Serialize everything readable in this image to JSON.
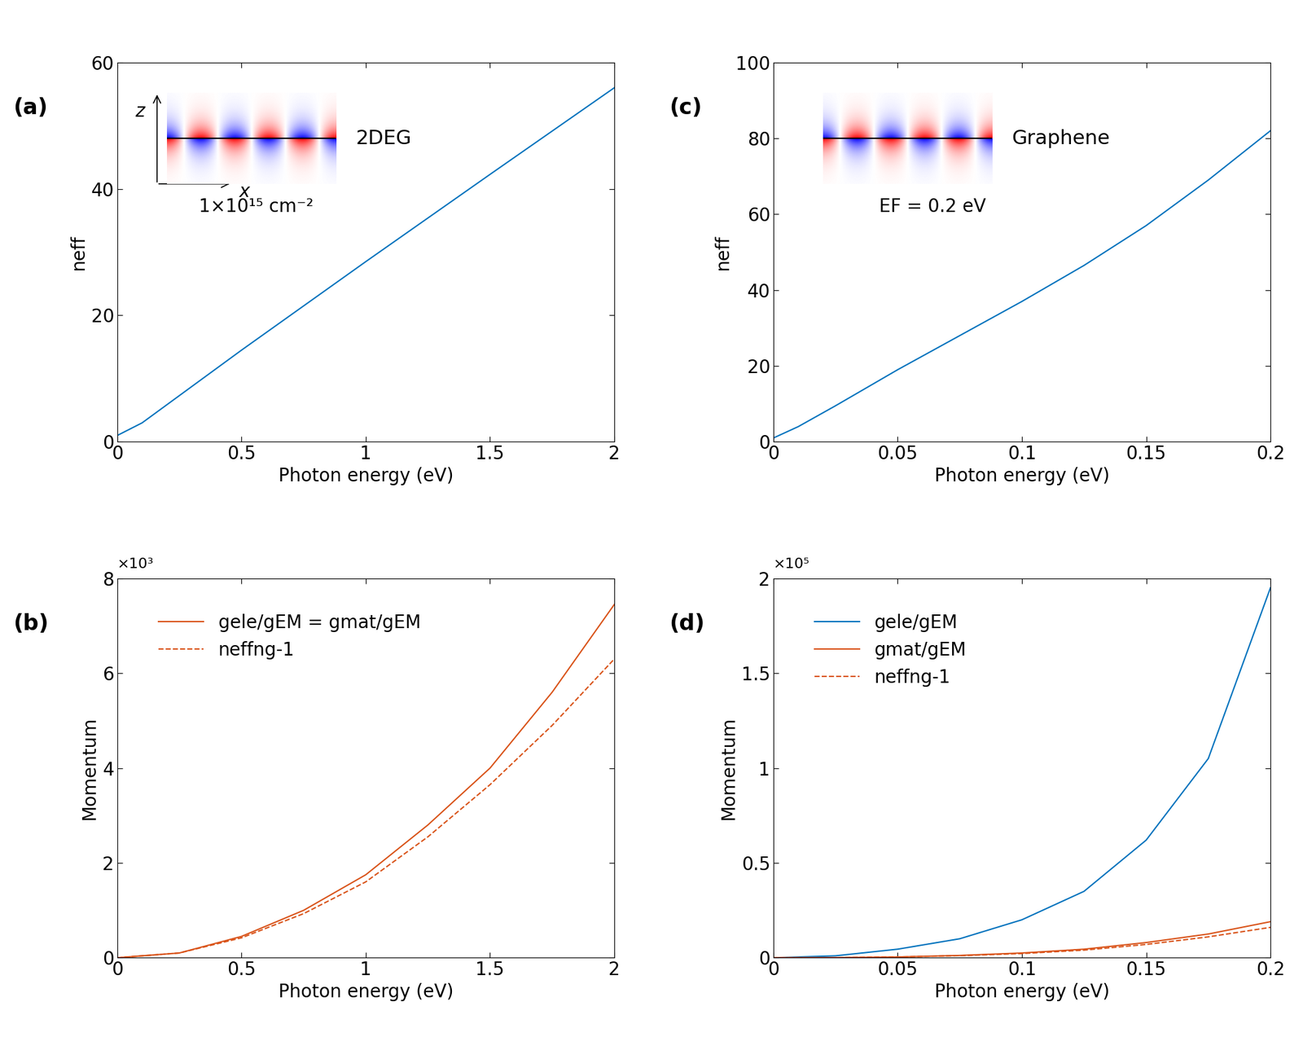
{
  "chart_data": [
    {
      "type": "line",
      "title": "(a)",
      "xlabel": "Photon energy (eV)",
      "ylabel": "neff",
      "x": [
        0,
        0.1,
        0.5,
        1,
        1.5,
        2
      ],
      "series": [
        {
          "color": "#0072bd",
          "line_style": "solid",
          "values": [
            1,
            3,
            14.5,
            28.5,
            42.3,
            56
          ]
        }
      ],
      "xlim": [
        0,
        2
      ],
      "xticks": [
        0,
        0.5,
        1,
        1.5,
        2
      ],
      "ylim": [
        0,
        60
      ],
      "yticks": [
        0,
        20,
        40,
        60
      ],
      "annotations": {
        "material": "2DEG",
        "condition": "1×10¹⁵ cm⁻²",
        "z_axis": "z",
        "x_axis": "x"
      }
    },
    {
      "type": "line",
      "title": "(b)",
      "xlabel": "Photon energy (eV)",
      "ylabel": "Momentum",
      "x": [
        0,
        0.25,
        0.5,
        0.75,
        1,
        1.25,
        1.5,
        1.75,
        2
      ],
      "series": [
        {
          "name": "gele/gEM = gmat/gEM",
          "color": "#d95319",
          "line_style": "solid",
          "values": [
            0,
            0.1,
            0.45,
            1.0,
            1.75,
            2.8,
            4.0,
            5.6,
            7.45
          ]
        },
        {
          "name": "neffng-1",
          "color": "#d95319",
          "line_style": "dashed",
          "values": [
            0,
            0.1,
            0.42,
            0.93,
            1.6,
            2.55,
            3.65,
            4.9,
            6.3
          ]
        }
      ],
      "xlim": [
        0,
        2
      ],
      "xticks": [
        0,
        0.5,
        1,
        1.5,
        2
      ],
      "ylim": [
        0,
        8
      ],
      "yticks": [
        0,
        2,
        4,
        6,
        8
      ],
      "legend": "upper left",
      "annotations": {
        "multiplier": "×10³"
      }
    },
    {
      "type": "line",
      "title": "(c)",
      "xlabel": "Photon energy (eV)",
      "ylabel": "neff",
      "x": [
        0,
        0.01,
        0.025,
        0.05,
        0.075,
        0.1,
        0.125,
        0.15,
        0.175,
        0.2
      ],
      "series": [
        {
          "color": "#0072bd",
          "line_style": "solid",
          "values": [
            1,
            4,
            9.5,
            19,
            28,
            37,
            46.5,
            57,
            69,
            82
          ]
        }
      ],
      "xlim": [
        0,
        0.2
      ],
      "xticks": [
        0,
        0.05,
        0.1,
        0.15,
        0.2
      ],
      "ylim": [
        0,
        100
      ],
      "yticks": [
        0,
        20,
        40,
        60,
        80,
        100
      ],
      "annotations": {
        "material": "Graphene",
        "condition": "EF = 0.2 eV"
      }
    },
    {
      "type": "line",
      "title": "(d)",
      "xlabel": "Photon energy (eV)",
      "ylabel": "Momentum",
      "x": [
        0,
        0.025,
        0.05,
        0.075,
        0.1,
        0.125,
        0.15,
        0.175,
        0.2
      ],
      "series": [
        {
          "name": "gele/gEM",
          "color": "#0072bd",
          "line_style": "solid",
          "values": [
            0,
            0.01,
            0.045,
            0.1,
            0.2,
            0.35,
            0.62,
            1.05,
            1.95
          ]
        },
        {
          "name": "gmat/gEM",
          "color": "#d95319",
          "line_style": "solid",
          "values": [
            0,
            0.001,
            0.004,
            0.012,
            0.025,
            0.045,
            0.08,
            0.125,
            0.19
          ]
        },
        {
          "name": "neffng-1",
          "color": "#d95319",
          "line_style": "dashed",
          "values": [
            0,
            0.001,
            0.004,
            0.011,
            0.022,
            0.04,
            0.07,
            0.11,
            0.16
          ]
        }
      ],
      "xlim": [
        0,
        0.2
      ],
      "xticks": [
        0,
        0.05,
        0.1,
        0.15,
        0.2
      ],
      "ylim": [
        0,
        2
      ],
      "yticks": [
        0,
        0.5,
        1,
        1.5,
        2
      ],
      "legend": "upper left",
      "annotations": {
        "multiplier": "×10⁵"
      }
    }
  ]
}
